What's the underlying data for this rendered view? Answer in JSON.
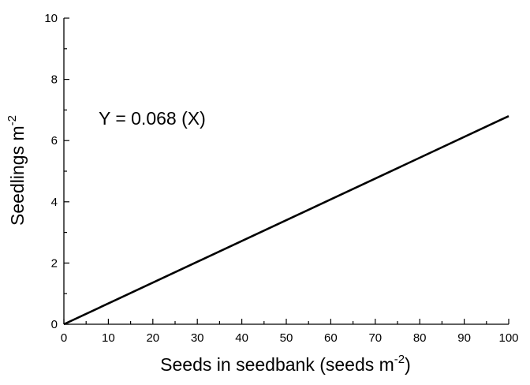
{
  "chart_data": {
    "type": "line",
    "xlabel_main": "Seeds in seedbank (seeds m",
    "xlabel_sup": "-2",
    "xlabel_tail": ")",
    "ylabel_main": "Seedlings m",
    "ylabel_sup": "-2",
    "annotation": "Y = 0.068 (X)",
    "xlim": [
      0,
      100
    ],
    "ylim": [
      0,
      10
    ],
    "xticks": [
      0,
      10,
      20,
      30,
      40,
      50,
      60,
      70,
      80,
      90,
      100
    ],
    "yticks": [
      0,
      2,
      4,
      6,
      8,
      10
    ],
    "series": [
      {
        "x": [
          0,
          100
        ],
        "y": [
          0,
          6.8
        ]
      }
    ],
    "grid": false,
    "legend": "none"
  }
}
